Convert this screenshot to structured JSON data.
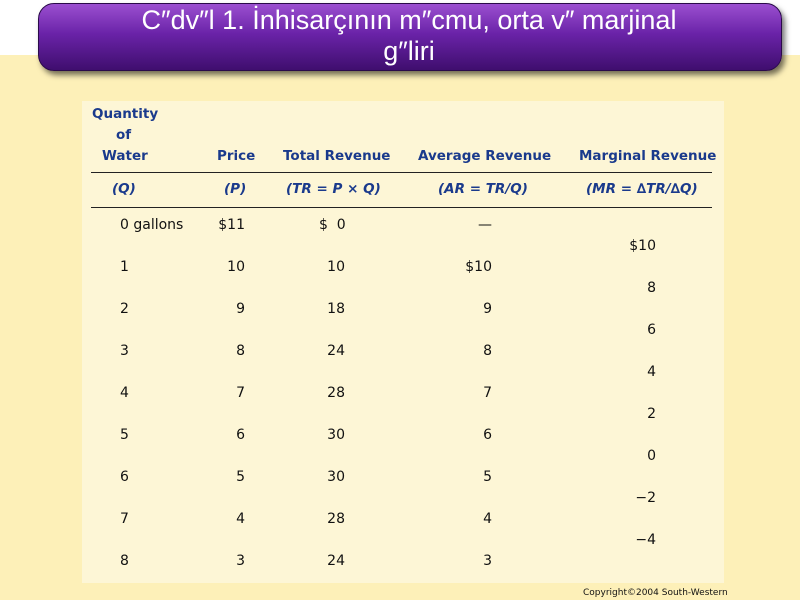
{
  "title": {
    "line1": "C″dv″l 1. İnhisarçının m″cmu, orta v″  marjinal",
    "line2": "g″liri"
  },
  "table": {
    "headers": {
      "quantity": [
        "Quantity",
        "of",
        "Water"
      ],
      "price": "Price",
      "total_revenue": "Total Revenue",
      "average_revenue": "Average Revenue",
      "marginal_revenue": "Marginal Revenue"
    },
    "formulas": {
      "quantity": "(Q)",
      "price": "(P)",
      "total_revenue": "(TR = P × Q)",
      "average_revenue": "(AR = TR/Q)",
      "marginal_revenue": "(MR = ∆TR/∆Q)"
    },
    "rows": [
      {
        "q": "0 gallons",
        "p": "$11",
        "tr": "$  0",
        "ar": "—"
      },
      {
        "q": "1",
        "p": "10",
        "tr": "10",
        "ar": "$10"
      },
      {
        "q": "2",
        "p": "9",
        "tr": "18",
        "ar": "9"
      },
      {
        "q": "3",
        "p": "8",
        "tr": "24",
        "ar": "8"
      },
      {
        "q": "4",
        "p": "7",
        "tr": "28",
        "ar": "7"
      },
      {
        "q": "5",
        "p": "6",
        "tr": "30",
        "ar": "6"
      },
      {
        "q": "6",
        "p": "5",
        "tr": "30",
        "ar": "5"
      },
      {
        "q": "7",
        "p": "4",
        "tr": "28",
        "ar": "4"
      },
      {
        "q": "8",
        "p": "3",
        "tr": "24",
        "ar": "3"
      }
    ],
    "marginal": [
      "$10",
      "8",
      "6",
      "4",
      "2",
      "0",
      "−2",
      "−4"
    ]
  },
  "copyright": "Copyright©2004  South-Western"
}
